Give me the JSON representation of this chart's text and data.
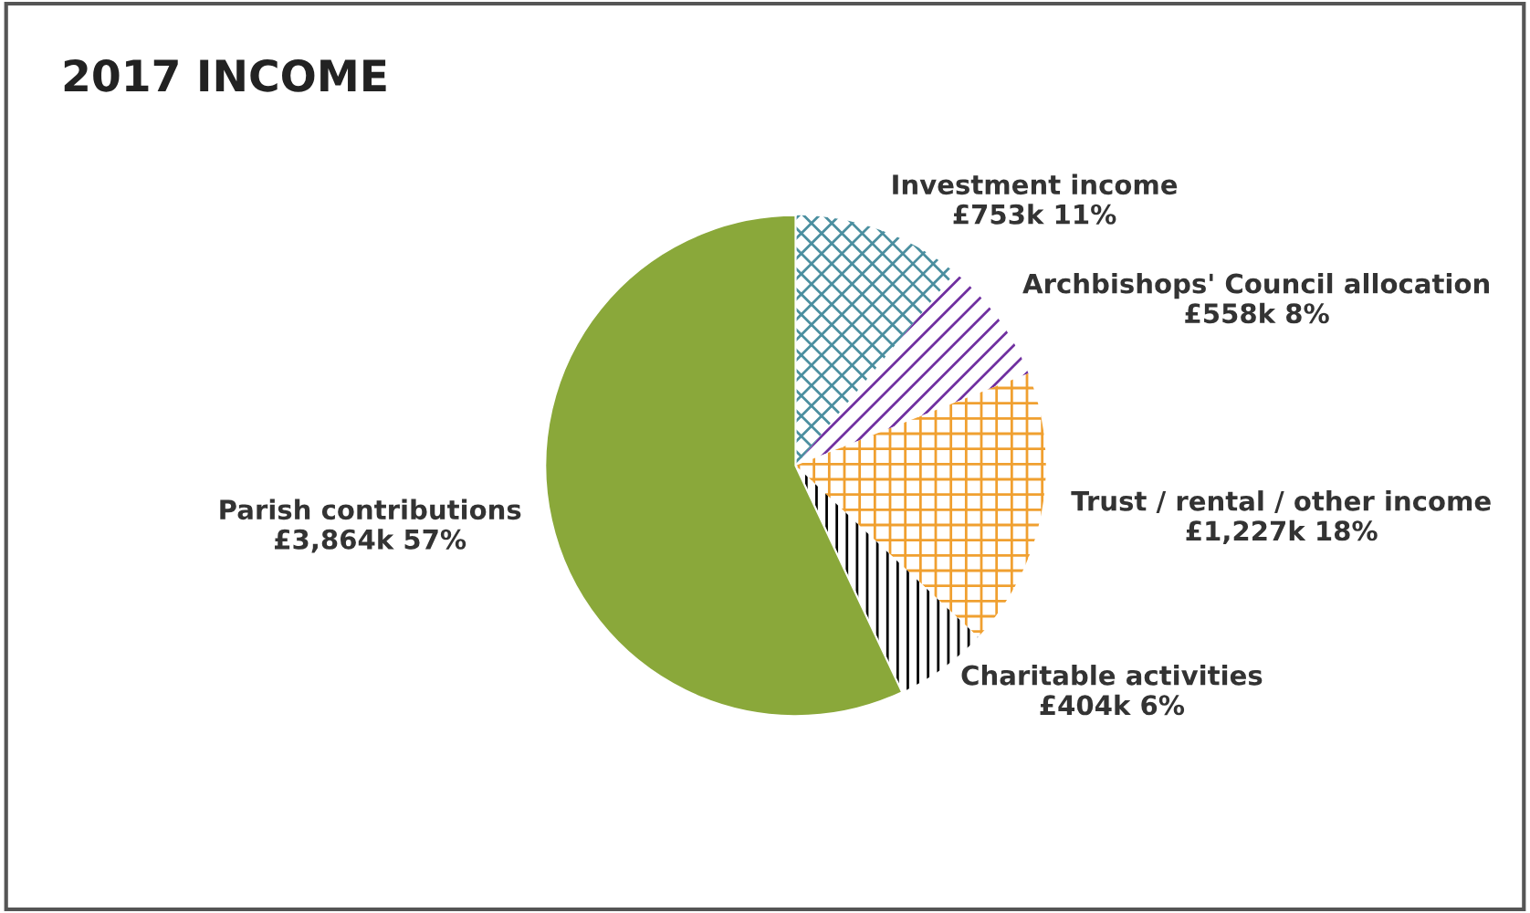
{
  "chart_data": {
    "type": "pie",
    "title": "2017 INCOME",
    "categories": [
      "Investment income",
      "Archbishops' Council allocation",
      "Trust / rental / other income",
      "Charitable activities",
      "Parish contributions"
    ],
    "values": [
      11,
      8,
      18,
      6,
      57
    ],
    "value_labels": [
      "£753k 11%",
      "£558k 8%",
      "£1,227k 18%",
      "£404k 6%",
      "£3,864k 57%"
    ],
    "colors": [
      "#4b8fa0",
      "#7030a0",
      "#f0a030",
      "#000000",
      "#8aa83a"
    ],
    "legend": false
  }
}
